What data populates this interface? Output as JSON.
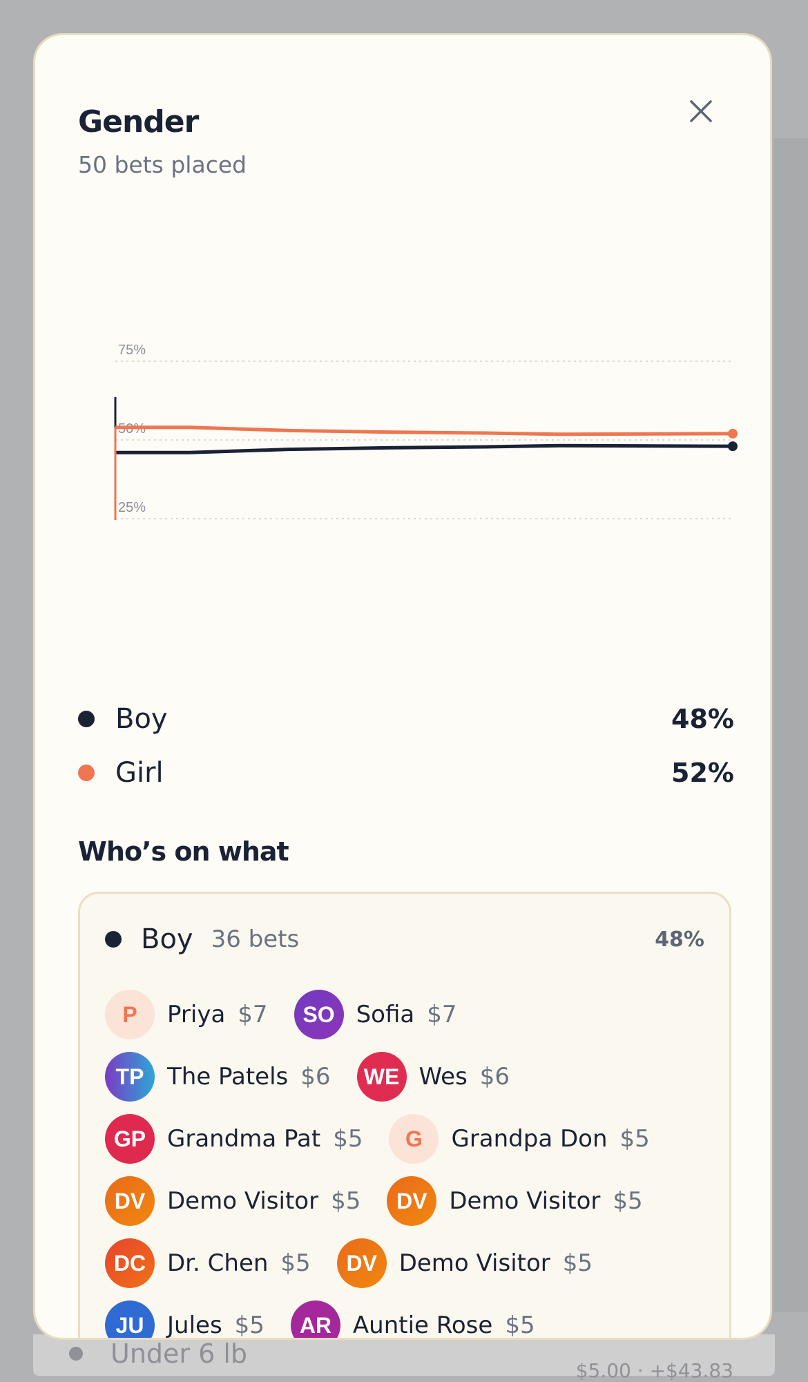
{
  "modal": {
    "title": "Gender",
    "subtitle": "50 bets placed",
    "close_icon": "close-icon"
  },
  "chart_data": {
    "type": "line",
    "y_ticks": [
      "75%",
      "50%",
      "25%"
    ],
    "ylim": [
      0,
      100
    ],
    "x": [
      0,
      6,
      14,
      22,
      30,
      36,
      50
    ],
    "series": [
      {
        "name": "Boy",
        "color": "#1a2236",
        "values": [
          46,
          46,
          47,
          47.5,
          47.8,
          48.2,
          48
        ]
      },
      {
        "name": "Girl",
        "color": "#ee7651",
        "values": [
          54,
          54,
          53,
          52.5,
          52.2,
          51.8,
          52
        ]
      }
    ],
    "grid": true
  },
  "legend": [
    {
      "label": "Boy",
      "value": "48%",
      "color": "#1a2236"
    },
    {
      "label": "Girl",
      "value": "52%",
      "color": "#ee7651"
    }
  ],
  "section_title": "Who’s on what",
  "group": {
    "name": "Boy",
    "count": "36 bets",
    "pct": "48%",
    "rows": [
      [
        {
          "initials": "P",
          "name": "Priya",
          "amount": "$7",
          "bg": "#fbe3d8",
          "fg": "#ee7651"
        },
        {
          "initials": "SO",
          "name": "Sofia",
          "amount": "$7",
          "bg": "linear-gradient(135deg,#6f3bc1,#8e35b7)",
          "fg": "#ffffff"
        }
      ],
      [
        {
          "initials": "TP",
          "name": "The Patels",
          "amount": "$6",
          "bg": "linear-gradient(90deg,#7a3cc3,#2ea6d6)",
          "fg": "#ffffff"
        },
        {
          "initials": "WE",
          "name": "Wes",
          "amount": "$6",
          "bg": "#e12c52",
          "fg": "#ffffff"
        }
      ],
      [
        {
          "initials": "GP",
          "name": "Grandma Pat",
          "amount": "$5",
          "bg": "#e0294f",
          "fg": "#ffffff"
        },
        {
          "initials": "G",
          "name": "Grandpa Don",
          "amount": "$5",
          "bg": "#fbe3d8",
          "fg": "#ee7651"
        }
      ],
      [
        {
          "initials": "DV",
          "name": "Demo Visitor",
          "amount": "$5",
          "bg": "linear-gradient(135deg,#ea6a1b,#f0880f)",
          "fg": "#ffffff"
        },
        {
          "initials": "DV",
          "name": "Demo Visitor",
          "amount": "$5",
          "bg": "linear-gradient(135deg,#ea6a1b,#f0880f)",
          "fg": "#ffffff"
        }
      ],
      [
        {
          "initials": "DC",
          "name": "Dr. Chen",
          "amount": "$5",
          "bg": "linear-gradient(135deg,#e8432e,#f07217)",
          "fg": "#ffffff"
        },
        {
          "initials": "DV",
          "name": "Demo Visitor",
          "amount": "$5",
          "bg": "linear-gradient(135deg,#ea6a1b,#f0880f)",
          "fg": "#ffffff"
        }
      ],
      [
        {
          "initials": "JU",
          "name": "Jules",
          "amount": "$5",
          "bg": "#2f6bd3",
          "fg": "#ffffff"
        },
        {
          "initials": "AR",
          "name": "Auntie Rose",
          "amount": "$5",
          "bg": "#a5279c",
          "fg": "#ffffff"
        }
      ]
    ]
  },
  "background": {
    "label": "Under 6 lb",
    "amount": "$5.00 · +$43.83"
  }
}
